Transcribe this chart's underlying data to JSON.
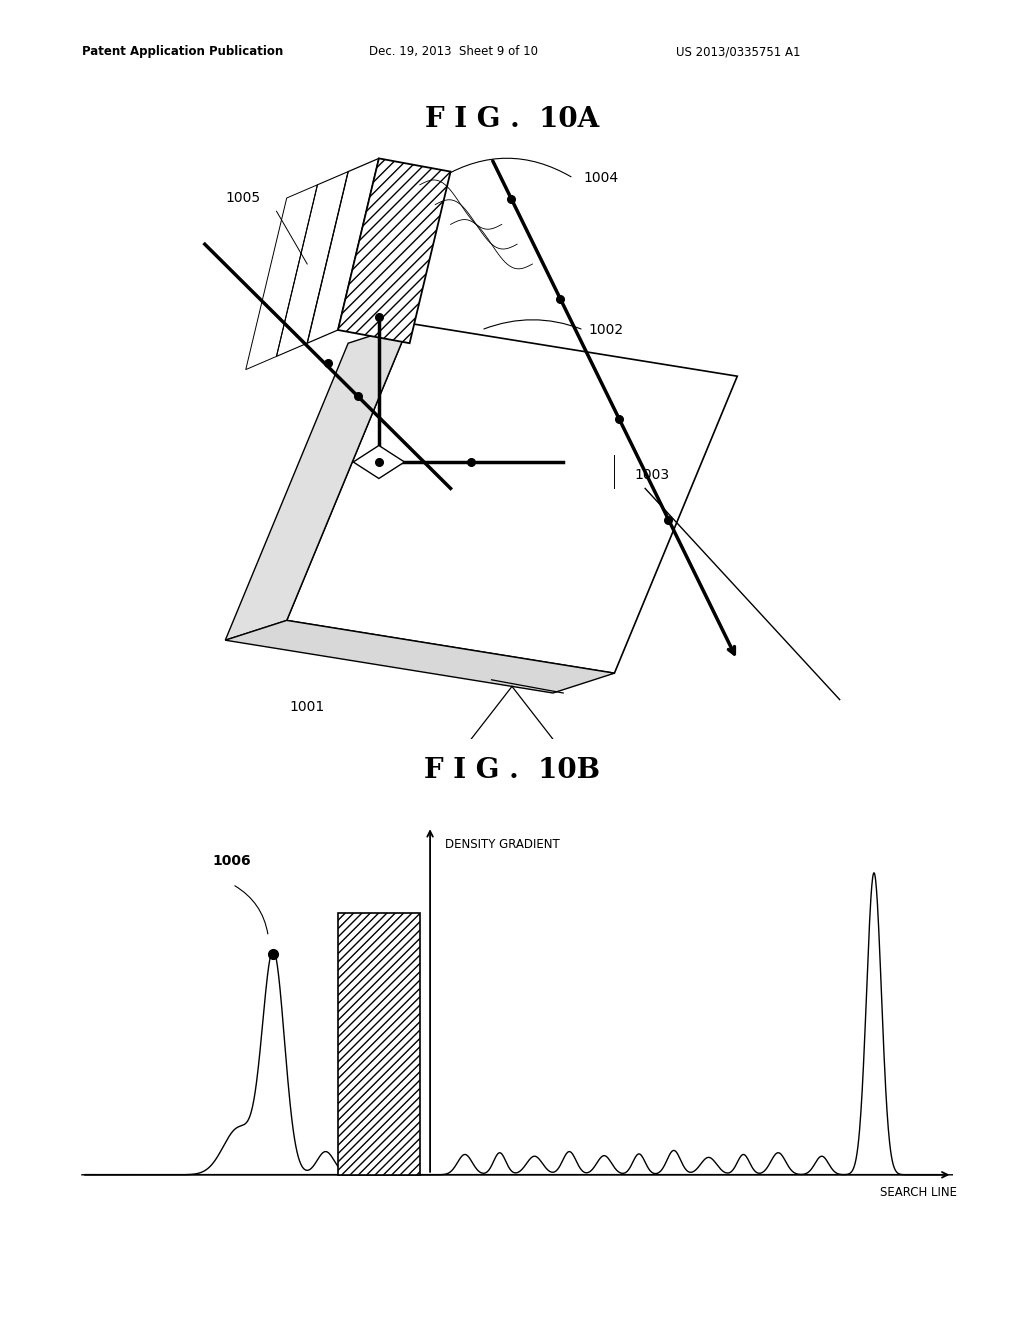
{
  "title_10a": "F I G .  10A",
  "title_10b": "F I G .  10B",
  "header_left": "Patent Application Publication",
  "header_mid": "Dec. 19, 2013  Sheet 9 of 10",
  "header_right": "US 2013/0335751 A1",
  "label_1001": "1001",
  "label_1002": "1002",
  "label_1003": "1003",
  "label_1004": "1004",
  "label_1005": "1005",
  "label_1006": "1006",
  "density_gradient_label": "DENSITY GRADIENT",
  "search_line_label": "SEARCH LINE",
  "bg_color": "#ffffff"
}
